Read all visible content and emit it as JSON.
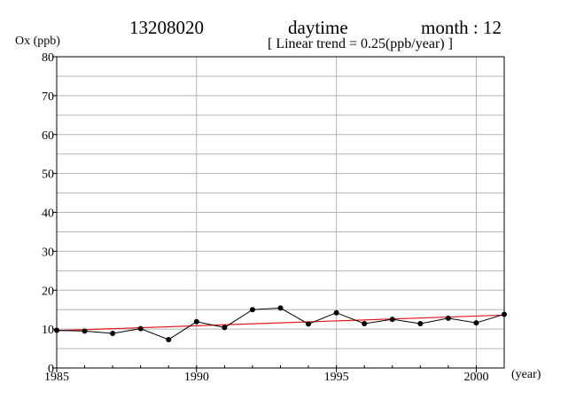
{
  "header": {
    "station": "13208020",
    "period": "daytime",
    "month_label": "month : 12",
    "trend_label": "[ Linear trend = 0.25(ppb/year) ]"
  },
  "colors": {
    "series": "#000000",
    "trend": "#e8161b",
    "grid": "#b4b4b4",
    "axis": "#000000"
  },
  "chart_data": {
    "type": "line",
    "ylabel": "Ox (ppb)",
    "xlabel": "(year)",
    "xlim": [
      1985,
      2001
    ],
    "ylim": [
      0,
      80
    ],
    "x_ticks": [
      1985,
      1990,
      1995,
      2000
    ],
    "y_ticks": [
      0,
      10,
      20,
      30,
      40,
      50,
      60,
      70,
      80
    ],
    "grid": true,
    "series": [
      {
        "x": [
          1985,
          1986,
          1987,
          1988,
          1989,
          1990,
          1991,
          1992,
          1993,
          1994,
          1995,
          1996,
          1997,
          1998,
          1999,
          2000,
          2001
        ],
        "values": [
          9.7,
          9.5,
          8.9,
          10.1,
          7.3,
          11.9,
          10.4,
          15.0,
          15.4,
          11.3,
          14.2,
          11.4,
          12.5,
          11.4,
          12.8,
          11.6,
          13.8
        ]
      }
    ],
    "trend_line": {
      "slope": 0.25,
      "x": [
        1985,
        2001
      ],
      "values": [
        9.6,
        13.6
      ]
    }
  }
}
